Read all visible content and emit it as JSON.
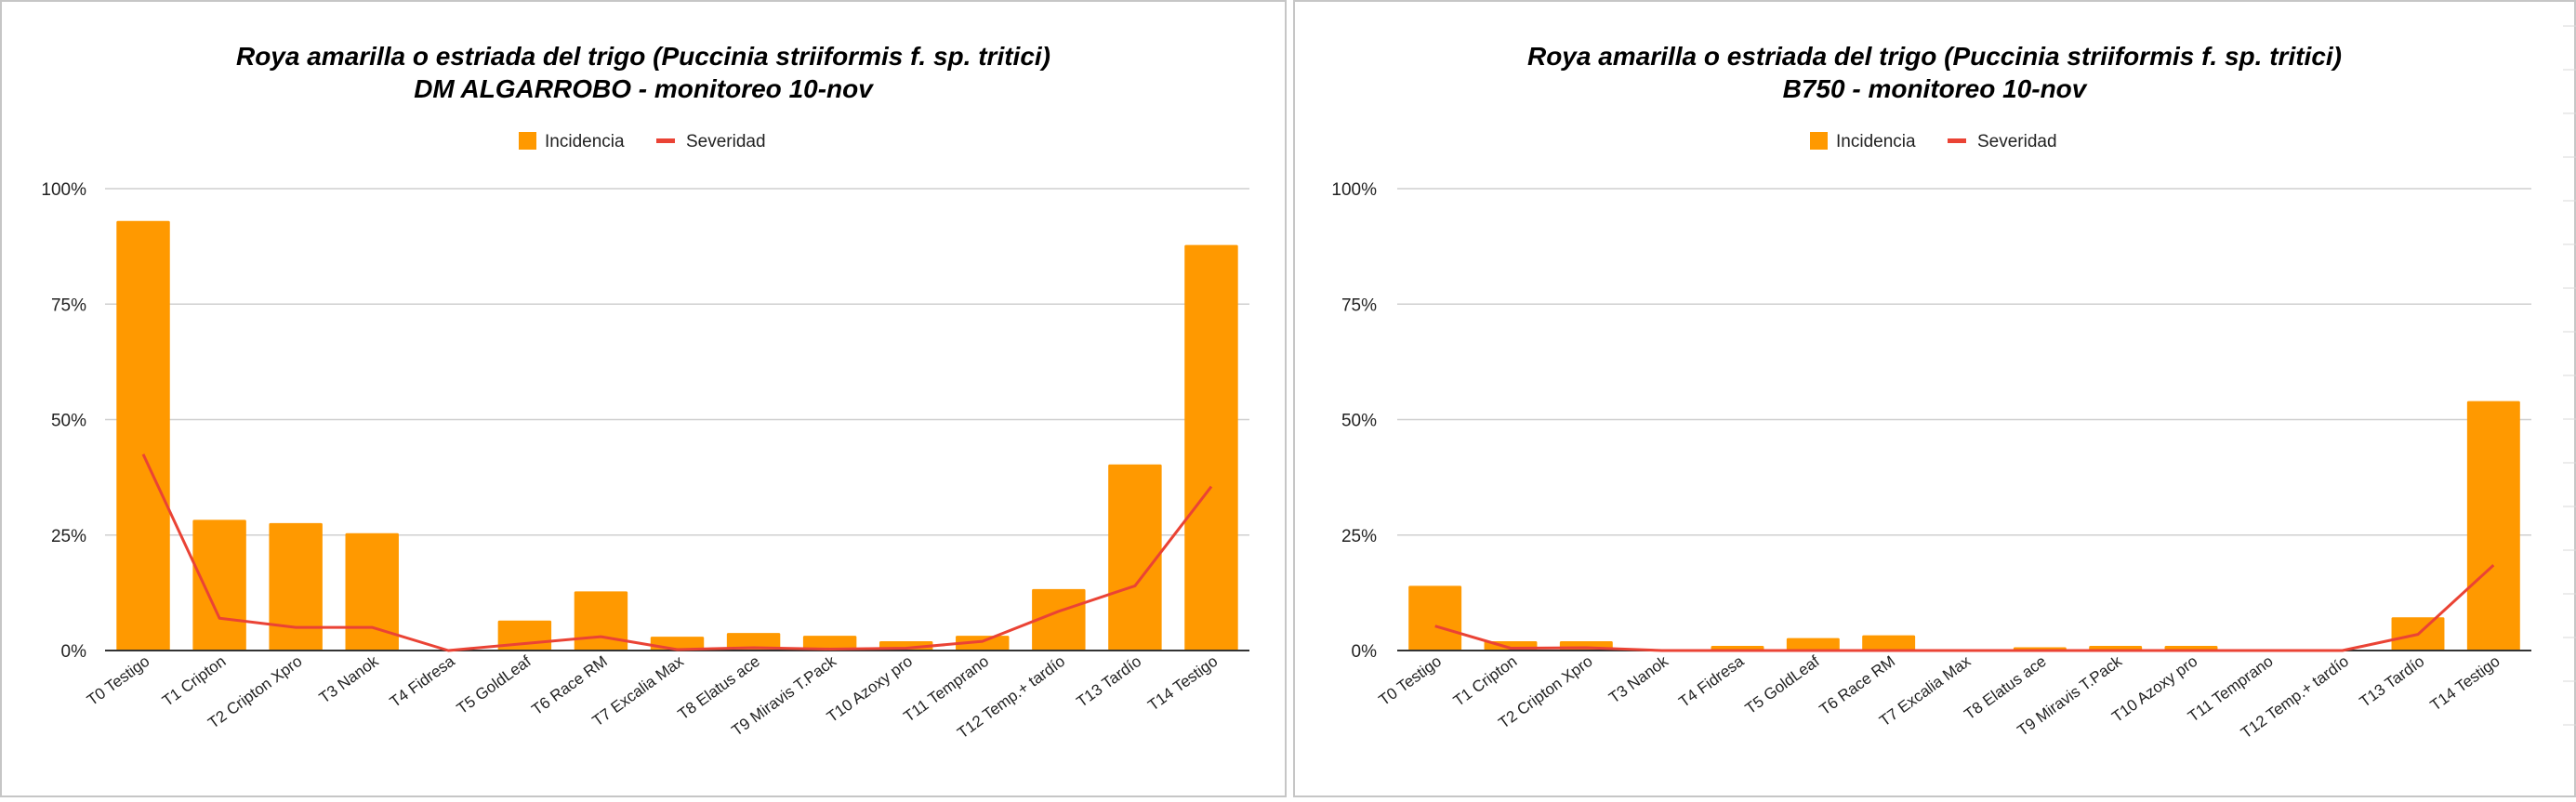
{
  "colors": {
    "incidencia": "#ff9900",
    "severidad": "#ea4335",
    "grid": "#cfcfcf",
    "border": "#c6c6c6"
  },
  "chart_data": [
    {
      "type": "bar",
      "title": "Roya amarilla o estriada del trigo (Puccinia striiformis f. sp. tritici)",
      "subtitle": "DM ALGARROBO - monitoreo 10-nov",
      "legend": [
        "Incidencia",
        "Severidad"
      ],
      "legend_position": "top",
      "grid": true,
      "ylim": [
        0,
        100
      ],
      "yticks": [
        "0%",
        "25%",
        "50%",
        "75%",
        "100%"
      ],
      "categories": [
        "T0 Testigo",
        "T1 Cripton",
        "T2 Cripton Xpro",
        "T3 Nanok",
        "T4 Fidresa",
        "T5 GoldLeaf",
        "T6 Race RM",
        "T7 Excalia Max",
        "T8 Elatus ace",
        "T9 Miravis T.Pack",
        "T10 Azoxy pro",
        "T11 Temprano",
        "T12 Temp.+ tardío",
        "T13 Tardío",
        "T14 Testigo"
      ],
      "series": [
        {
          "name": "Incidencia",
          "type": "bar",
          "values": [
            93,
            28.3,
            27.6,
            25.4,
            0,
            6.5,
            12.8,
            3,
            3.8,
            3.2,
            2,
            3.2,
            13.3,
            40.3,
            87.8
          ]
        },
        {
          "name": "Severidad",
          "type": "line",
          "values": [
            42.5,
            7,
            5,
            5,
            0,
            1.5,
            3,
            0.2,
            0.6,
            0.3,
            0.5,
            2,
            8.5,
            14,
            35.5
          ]
        }
      ]
    },
    {
      "type": "bar",
      "title": "Roya amarilla o estriada del trigo (Puccinia striiformis f. sp. tritici)",
      "subtitle": "B750 - monitoreo 10-nov",
      "legend": [
        "Incidencia",
        "Severidad"
      ],
      "legend_position": "top",
      "grid": true,
      "ylim": [
        0,
        100
      ],
      "yticks": [
        "0%",
        "25%",
        "50%",
        "75%",
        "100%"
      ],
      "categories": [
        "T0 Testigo",
        "T1 Cripton",
        "T2 Cripton Xpro",
        "T3 Nanok",
        "T4 Fidresa",
        "T5 GoldLeaf",
        "T6 Race RM",
        "T7 Excalia Max",
        "T8 Elatus ace",
        "T9 Miravis T.Pack",
        "T10 Azoxy pro",
        "T11 Temprano",
        "T12 Temp.+ tardío",
        "T13 Tardío",
        "T14 Testigo"
      ],
      "series": [
        {
          "name": "Incidencia",
          "type": "bar",
          "values": [
            14,
            2,
            2,
            0,
            1,
            2.7,
            3.3,
            0,
            0.7,
            1,
            1,
            0,
            0,
            7.2,
            54
          ]
        },
        {
          "name": "Severidad",
          "type": "line",
          "values": [
            5.3,
            0.5,
            0.6,
            0,
            0,
            0,
            0,
            0,
            0,
            0,
            0,
            0,
            0,
            3.5,
            18.5
          ]
        }
      ]
    }
  ]
}
